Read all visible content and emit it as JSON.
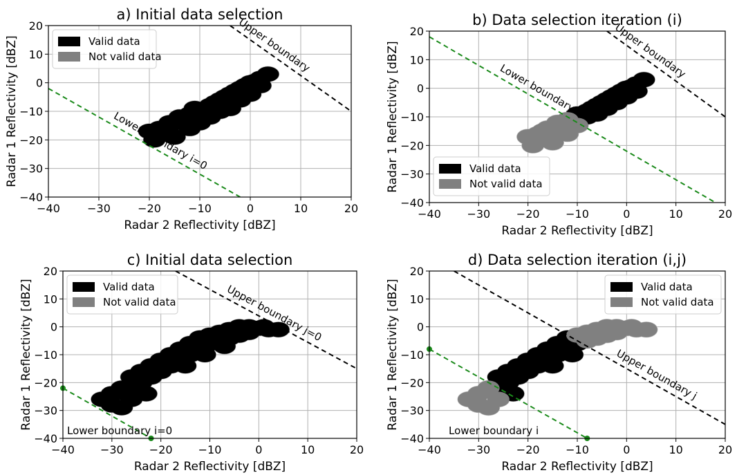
{
  "chart_data": [
    {
      "type": "scatter",
      "title": "a) Initial data selection",
      "xlabel": "Radar 2 Reflectivity [dBZ]",
      "ylabel": "Radar 1 Reflectivity [dBZ]",
      "xlim": [
        -40,
        20
      ],
      "ylim": [
        -40,
        20
      ],
      "xticks": [
        "−40",
        "−30",
        "−20",
        "−10",
        "0",
        "10",
        "20"
      ],
      "yticks": [
        "20",
        "10",
        "0",
        "−10",
        "−20",
        "−30",
        "−40"
      ],
      "grid": true,
      "legend": {
        "position": "top-left",
        "entries": [
          {
            "label": "Valid data",
            "color": "#000000"
          },
          {
            "label": "Not valid data",
            "color": "#808080"
          }
        ]
      },
      "series": [
        {
          "name": "Valid data",
          "color": "#000000",
          "points": [
            [
              -20,
              -17
            ],
            [
              -18,
              -16
            ],
            [
              -16,
              -14
            ],
            [
              -14,
              -12
            ],
            [
              -12,
              -11
            ],
            [
              -10,
              -10
            ],
            [
              -8,
              -8
            ],
            [
              -6,
              -6
            ],
            [
              -4,
              -4
            ],
            [
              -2,
              -2
            ],
            [
              0,
              0
            ],
            [
              2,
              1.5
            ],
            [
              3.5,
              3
            ],
            [
              -19,
              -20
            ],
            [
              -15,
              -19
            ],
            [
              -12,
              -16
            ],
            [
              -10,
              -14
            ],
            [
              -8,
              -12
            ],
            [
              -6,
              -10
            ],
            [
              -4,
              -9
            ],
            [
              -2,
              -6
            ],
            [
              0,
              -4
            ],
            [
              2,
              -1
            ],
            [
              -16,
              -15
            ],
            [
              -13,
              -13
            ],
            [
              -11,
              -9
            ],
            [
              -7,
              -7
            ],
            [
              -5,
              -5
            ],
            [
              -3,
              -3
            ],
            [
              -1,
              -1
            ],
            [
              1,
              0.5
            ],
            [
              -9,
              -11
            ],
            [
              -17,
              -18
            ]
          ]
        }
      ],
      "lines": [
        {
          "label": "Upper boundary",
          "color": "#000000",
          "points": [
            [
              -4,
              20
            ],
            [
              20,
              -10
            ]
          ]
        },
        {
          "label": "Lower boundary i=0",
          "color": "#1a8a1a",
          "points": [
            [
              -40,
              -2
            ],
            [
              -2,
              -40
            ]
          ]
        }
      ]
    },
    {
      "type": "scatter",
      "title": "b) Data selection iteration (i)",
      "xlabel": "Radar 2 Reflectivity [dBZ]",
      "ylabel": "Radar 1 Reflectivity [dBZ]",
      "xlim": [
        -40,
        20
      ],
      "ylim": [
        -40,
        20
      ],
      "xticks": [
        "−40",
        "−30",
        "−20",
        "−10",
        "0",
        "10",
        "20"
      ],
      "yticks": [
        "20",
        "10",
        "0",
        "−10",
        "−20",
        "−30",
        "−40"
      ],
      "grid": true,
      "legend": {
        "position": "bottom-left",
        "entries": [
          {
            "label": "Valid data",
            "color": "#000000"
          },
          {
            "label": "Not valid data",
            "color": "#808080"
          }
        ]
      },
      "series": [
        {
          "name": "Valid data",
          "color": "#000000",
          "points": [
            [
              -10,
              -9
            ],
            [
              -8,
              -8
            ],
            [
              -6,
              -6
            ],
            [
              -4,
              -4
            ],
            [
              -2,
              -2
            ],
            [
              0,
              0
            ],
            [
              2,
              1.5
            ],
            [
              3.5,
              3
            ],
            [
              -8,
              -10
            ],
            [
              -6,
              -9
            ],
            [
              -4,
              -7
            ],
            [
              -2,
              -5
            ],
            [
              0,
              -3
            ],
            [
              2,
              -1
            ],
            [
              -5,
              -5
            ],
            [
              -3,
              -3
            ],
            [
              -1,
              -1
            ],
            [
              1,
              0.5
            ],
            [
              -7,
              -7
            ]
          ]
        },
        {
          "name": "Not valid data",
          "color": "#808080",
          "points": [
            [
              -20,
              -17
            ],
            [
              -18,
              -16
            ],
            [
              -16,
              -14
            ],
            [
              -14,
              -12
            ],
            [
              -12,
              -11
            ],
            [
              -19,
              -20
            ],
            [
              -15,
              -19
            ],
            [
              -12,
              -16
            ],
            [
              -10,
              -13
            ],
            [
              -16,
              -17
            ],
            [
              -13,
              -13
            ],
            [
              -17,
              -15
            ]
          ]
        }
      ],
      "lines": [
        {
          "label": "Upper boundary",
          "color": "#000000",
          "points": [
            [
              -4,
              20
            ],
            [
              20,
              -10
            ]
          ]
        },
        {
          "label": "Lower boundary i",
          "color": "#1a8a1a",
          "points": [
            [
              -40,
              18
            ],
            [
              18,
              -40
            ]
          ]
        }
      ]
    },
    {
      "type": "scatter",
      "title": "c) Initial data selection",
      "xlabel": "Radar 2 Reflectivity [dBZ]",
      "ylabel": "Radar 1 Reflectivity [dBZ]",
      "xlim": [
        -40,
        20
      ],
      "ylim": [
        -40,
        20
      ],
      "xticks": [
        "−40",
        "−30",
        "−20",
        "−10",
        "0",
        "10",
        "20"
      ],
      "yticks": [
        "20",
        "10",
        "0",
        "−10",
        "−20",
        "−30",
        "−40"
      ],
      "grid": true,
      "legend": {
        "position": "top-left",
        "entries": [
          {
            "label": "Valid data",
            "color": "#000000"
          },
          {
            "label": "Not valid data",
            "color": "#808080"
          }
        ]
      },
      "series": [
        {
          "name": "Valid data",
          "color": "#000000",
          "points": [
            [
              -32,
              -26
            ],
            [
              -30,
              -24
            ],
            [
              -28,
              -22
            ],
            [
              -26,
              -26
            ],
            [
              -28,
              -29
            ],
            [
              -26,
              -18
            ],
            [
              -24,
              -16
            ],
            [
              -22,
              -14
            ],
            [
              -20,
              -12
            ],
            [
              -18,
              -10
            ],
            [
              -16,
              -8
            ],
            [
              -14,
              -6
            ],
            [
              -12,
              -4
            ],
            [
              -10,
              -3
            ],
            [
              -8,
              -2
            ],
            [
              -6,
              -1
            ],
            [
              -4,
              0
            ],
            [
              -2,
              0
            ],
            [
              0,
              -0.5
            ],
            [
              2,
              -1
            ],
            [
              4,
              -1
            ],
            [
              -24,
              -20
            ],
            [
              -22,
              -18
            ],
            [
              -20,
              -16
            ],
            [
              -18,
              -14
            ],
            [
              -16,
              -12
            ],
            [
              -14,
              -10
            ],
            [
              -12,
              -8
            ],
            [
              -10,
              -6
            ],
            [
              -8,
              -5
            ],
            [
              -6,
              -4
            ],
            [
              -4,
              -3
            ],
            [
              -2,
              -2
            ],
            [
              -30,
              -28
            ],
            [
              -27,
              -24
            ],
            [
              -25,
              -22
            ],
            [
              -23,
              -24
            ],
            [
              -15,
              -14
            ],
            [
              -11,
              -10
            ],
            [
              -7,
              -7
            ],
            [
              -3,
              -1
            ],
            [
              1,
              0
            ]
          ]
        }
      ],
      "lines": [
        {
          "label": "Upper boundary j=0",
          "color": "#000000",
          "points": [
            [
              -17,
              20
            ],
            [
              20,
              -15
            ]
          ]
        },
        {
          "label": "Lower boundary i=0",
          "color": "#1a8a1a",
          "points": [
            [
              -40,
              -22
            ],
            [
              -22,
              -40
            ]
          ]
        }
      ],
      "annotations": [
        "Lower boundary i=0"
      ]
    },
    {
      "type": "scatter",
      "title": "d) Data selection iteration (i,j)",
      "xlabel": "Radar 2 Reflectivity [dBZ]",
      "ylabel": "Radar 1 Reflectivity [dBZ]",
      "xlim": [
        -40,
        20
      ],
      "ylim": [
        -40,
        20
      ],
      "xticks": [
        "−40",
        "−30",
        "−20",
        "−10",
        "0",
        "10",
        "20"
      ],
      "yticks": [
        "20",
        "10",
        "0",
        "−10",
        "−20",
        "−30",
        "−40"
      ],
      "grid": true,
      "legend": {
        "position": "top-right",
        "entries": [
          {
            "label": "Valid data",
            "color": "#000000"
          },
          {
            "label": "Not valid data",
            "color": "#808080"
          }
        ]
      },
      "series": [
        {
          "name": "Valid data",
          "color": "#000000",
          "points": [
            [
              -26,
              -18
            ],
            [
              -24,
              -16
            ],
            [
              -22,
              -14
            ],
            [
              -20,
              -12
            ],
            [
              -18,
              -10
            ],
            [
              -16,
              -8
            ],
            [
              -14,
              -6
            ],
            [
              -12,
              -4
            ],
            [
              -24,
              -20
            ],
            [
              -22,
              -18
            ],
            [
              -20,
              -16
            ],
            [
              -18,
              -14
            ],
            [
              -16,
              -12
            ],
            [
              -14,
              -10
            ],
            [
              -12,
              -8
            ],
            [
              -10,
              -6
            ],
            [
              -9,
              -5
            ],
            [
              -26,
              -22
            ],
            [
              -23,
              -24
            ],
            [
              -15,
              -14
            ],
            [
              -11,
              -10
            ]
          ]
        },
        {
          "name": "Not valid data",
          "color": "#808080",
          "points": [
            [
              -32,
              -26
            ],
            [
              -30,
              -24
            ],
            [
              -28,
              -22
            ],
            [
              -26,
              -26
            ],
            [
              -28,
              -29
            ],
            [
              -30,
              -28
            ],
            [
              -10,
              -3
            ],
            [
              -8,
              -2
            ],
            [
              -6,
              -1
            ],
            [
              -4,
              0
            ],
            [
              -2,
              0
            ],
            [
              0,
              -0.5
            ],
            [
              2,
              -1
            ],
            [
              4,
              -1
            ],
            [
              -8,
              -5
            ],
            [
              -6,
              -4
            ],
            [
              -4,
              -3
            ],
            [
              -2,
              -2
            ],
            [
              -3,
              -1
            ],
            [
              1,
              0
            ]
          ]
        }
      ],
      "lines": [
        {
          "label": "Upper boundary j",
          "color": "#000000",
          "points": [
            [
              -35,
              20
            ],
            [
              20,
              -35
            ]
          ]
        },
        {
          "label": "Lower boundary i",
          "color": "#1a8a1a",
          "points": [
            [
              -40,
              -8
            ],
            [
              -8,
              -40
            ]
          ]
        }
      ],
      "annotations": [
        "Lower boundary i"
      ]
    }
  ]
}
